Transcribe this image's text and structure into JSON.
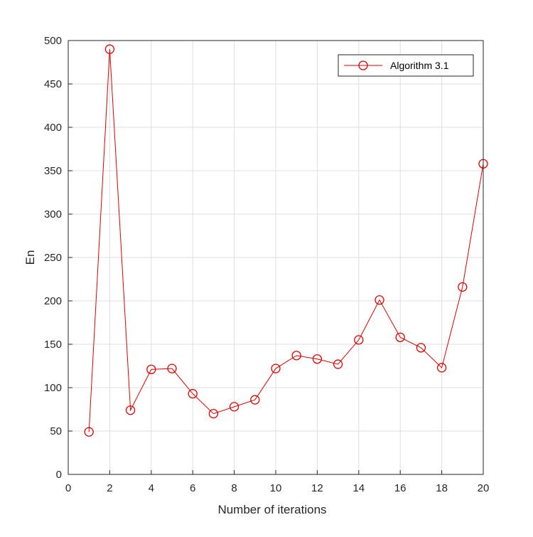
{
  "chart_data": {
    "type": "line",
    "title": "",
    "xlabel": "Number of iterations",
    "ylabel": "En",
    "xlim": [
      0,
      20
    ],
    "ylim": [
      0,
      500
    ],
    "xticks": [
      0,
      2,
      4,
      6,
      8,
      10,
      12,
      14,
      16,
      18,
      20
    ],
    "yticks": [
      0,
      50,
      100,
      150,
      200,
      250,
      300,
      350,
      400,
      450,
      500
    ],
    "grid": true,
    "legend_position": "top-right",
    "series": [
      {
        "name": "Algorithm 3.1",
        "color": "#e00000",
        "marker": "circle",
        "x": [
          1,
          2,
          3,
          4,
          5,
          6,
          7,
          8,
          9,
          10,
          11,
          12,
          13,
          14,
          15,
          16,
          17,
          18,
          19,
          20
        ],
        "y": [
          49,
          490,
          74,
          121,
          122,
          93,
          70,
          78,
          86,
          122,
          137,
          133,
          127,
          155,
          201,
          158,
          146,
          123,
          216,
          358
        ]
      }
    ]
  }
}
